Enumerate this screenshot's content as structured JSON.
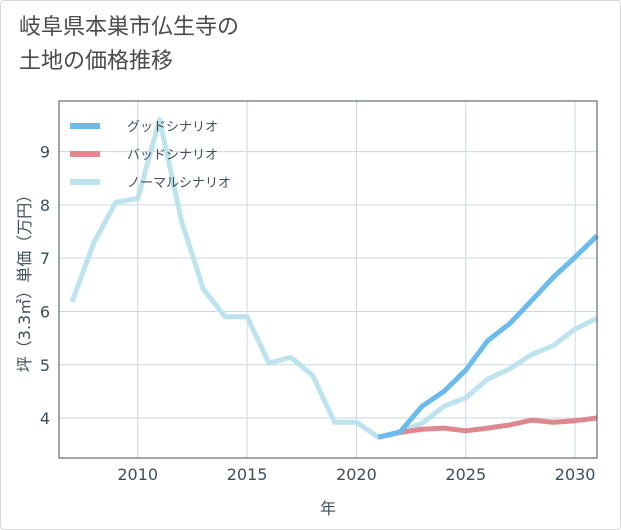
{
  "title": {
    "line1": "岐阜県本巣市仏生寺の",
    "line2": "土地の価格推移"
  },
  "colors": {
    "good": "#6bbcec",
    "bad": "#e0888f",
    "normal": "#bde3ef",
    "grid": "#c9d9e2",
    "axis": "#3f4e5c"
  },
  "chart_data": {
    "type": "line",
    "xlabel": "年",
    "ylabel": "坪（3.3㎡）単価（万円）",
    "xlim": [
      2006.4,
      2031
    ],
    "ylim": [
      3.25,
      9.95
    ],
    "xticks": [
      2010,
      2015,
      2020,
      2025,
      2030
    ],
    "yticks": [
      4,
      5,
      6,
      7,
      8,
      9
    ],
    "grid": true,
    "legend_position": "top-left",
    "series": [
      {
        "name": "グッドシナリオ",
        "color": "#6bbcec",
        "x": [
          2021,
          2022,
          2023,
          2024,
          2025,
          2026,
          2027,
          2028,
          2029,
          2030,
          2031
        ],
        "y": [
          3.64,
          3.74,
          4.22,
          4.5,
          4.9,
          5.45,
          5.77,
          6.2,
          6.64,
          7.02,
          7.42
        ]
      },
      {
        "name": "バッドシナリオ",
        "color": "#e0888f",
        "x": [
          2021,
          2022,
          2023,
          2024,
          2025,
          2026,
          2027,
          2028,
          2029,
          2030,
          2031
        ],
        "y": [
          3.64,
          3.73,
          3.79,
          3.81,
          3.76,
          3.81,
          3.87,
          3.96,
          3.92,
          3.95,
          4.0
        ]
      },
      {
        "name": "ノーマルシナリオ",
        "color": "#bde3ef",
        "x": [
          2007,
          2008,
          2009,
          2010,
          2011,
          2012,
          2013,
          2014,
          2015,
          2016,
          2017,
          2018,
          2019,
          2020,
          2021,
          2022,
          2023,
          2024,
          2025,
          2026,
          2027,
          2028,
          2029,
          2030,
          2031
        ],
        "y": [
          6.18,
          7.3,
          8.05,
          8.12,
          9.6,
          7.7,
          6.42,
          5.9,
          5.9,
          5.03,
          5.14,
          4.8,
          3.92,
          3.92,
          3.64,
          3.74,
          3.9,
          4.22,
          4.38,
          4.73,
          4.92,
          5.19,
          5.36,
          5.67,
          5.87
        ]
      }
    ]
  }
}
